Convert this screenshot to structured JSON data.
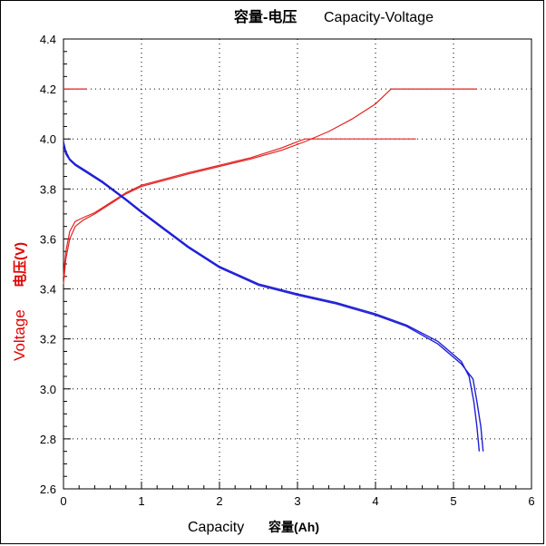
{
  "chart_data": {
    "type": "line",
    "title_cn": "容量-电压",
    "title_en": "Capacity-Voltage",
    "xlabel_en": "Capacity",
    "xlabel_cn": "容量(Ah)",
    "ylabel_en": "Voltage",
    "ylabel_cn": "电压(V)",
    "xlim": [
      0,
      6
    ],
    "ylim": [
      2.6,
      4.4
    ],
    "x_ticks": [
      0,
      1,
      2,
      3,
      4,
      5,
      6
    ],
    "y_ticks": [
      "2.6",
      "2.8",
      "3.0",
      "3.2",
      "3.4",
      "3.6",
      "3.8",
      "4.0",
      "4.2",
      "4.4"
    ],
    "grid": true,
    "colors": {
      "charge": "#e32222",
      "discharge": "#1f1fd6",
      "ylabel": "#e00000"
    },
    "series": [
      {
        "kind": "charge",
        "values": [
          [
            0,
            3.42
          ],
          [
            0.03,
            3.52
          ],
          [
            0.08,
            3.6
          ],
          [
            0.15,
            3.65
          ],
          [
            0.25,
            3.675
          ],
          [
            0.4,
            3.7
          ],
          [
            0.6,
            3.74
          ],
          [
            0.8,
            3.78
          ],
          [
            1.0,
            3.81
          ],
          [
            1.3,
            3.835
          ],
          [
            1.6,
            3.86
          ],
          [
            2.0,
            3.89
          ],
          [
            2.4,
            3.92
          ],
          [
            2.8,
            3.955
          ],
          [
            3.1,
            3.99
          ],
          [
            3.4,
            4.03
          ],
          [
            3.7,
            4.08
          ],
          [
            4.0,
            4.14
          ],
          [
            4.2,
            4.2
          ],
          [
            5.3,
            4.2
          ]
        ]
      },
      {
        "kind": "charge",
        "values": [
          [
            0,
            3.45
          ],
          [
            0.03,
            3.55
          ],
          [
            0.08,
            3.63
          ],
          [
            0.15,
            3.67
          ],
          [
            0.25,
            3.685
          ],
          [
            0.4,
            3.705
          ],
          [
            0.6,
            3.745
          ],
          [
            0.8,
            3.785
          ],
          [
            1.0,
            3.815
          ],
          [
            1.3,
            3.84
          ],
          [
            1.6,
            3.865
          ],
          [
            2.0,
            3.895
          ],
          [
            2.4,
            3.925
          ],
          [
            2.8,
            3.965
          ],
          [
            3.05,
            3.995
          ],
          [
            3.1,
            4.0
          ],
          [
            4.52,
            4.0
          ]
        ]
      },
      {
        "kind": "charge",
        "values": [
          [
            0,
            4.2
          ],
          [
            0.3,
            4.2
          ]
        ]
      },
      {
        "kind": "discharge",
        "values": [
          [
            0,
            3.99
          ],
          [
            0.03,
            3.95
          ],
          [
            0.08,
            3.92
          ],
          [
            0.15,
            3.9
          ],
          [
            0.3,
            3.87
          ],
          [
            0.5,
            3.83
          ],
          [
            0.8,
            3.76
          ],
          [
            1.0,
            3.71
          ],
          [
            1.3,
            3.64
          ],
          [
            1.6,
            3.57
          ],
          [
            2.0,
            3.49
          ],
          [
            2.5,
            3.42
          ],
          [
            3.0,
            3.38
          ],
          [
            3.5,
            3.345
          ],
          [
            4.0,
            3.3
          ],
          [
            4.4,
            3.255
          ],
          [
            4.8,
            3.19
          ],
          [
            5.1,
            3.11
          ],
          [
            5.2,
            3.05
          ],
          [
            5.26,
            2.95
          ],
          [
            5.3,
            2.85
          ],
          [
            5.33,
            2.75
          ]
        ]
      },
      {
        "kind": "discharge",
        "values": [
          [
            0,
            3.98
          ],
          [
            0.03,
            3.94
          ],
          [
            0.08,
            3.915
          ],
          [
            0.15,
            3.895
          ],
          [
            0.3,
            3.865
          ],
          [
            0.5,
            3.825
          ],
          [
            0.8,
            3.755
          ],
          [
            1.0,
            3.705
          ],
          [
            1.3,
            3.635
          ],
          [
            1.6,
            3.565
          ],
          [
            2.0,
            3.485
          ],
          [
            2.5,
            3.415
          ],
          [
            3.0,
            3.375
          ],
          [
            3.5,
            3.34
          ],
          [
            4.0,
            3.295
          ],
          [
            4.4,
            3.25
          ],
          [
            4.8,
            3.18
          ],
          [
            5.1,
            3.1
          ],
          [
            5.25,
            3.04
          ],
          [
            5.3,
            2.95
          ],
          [
            5.35,
            2.85
          ],
          [
            5.38,
            2.75
          ]
        ]
      }
    ]
  }
}
